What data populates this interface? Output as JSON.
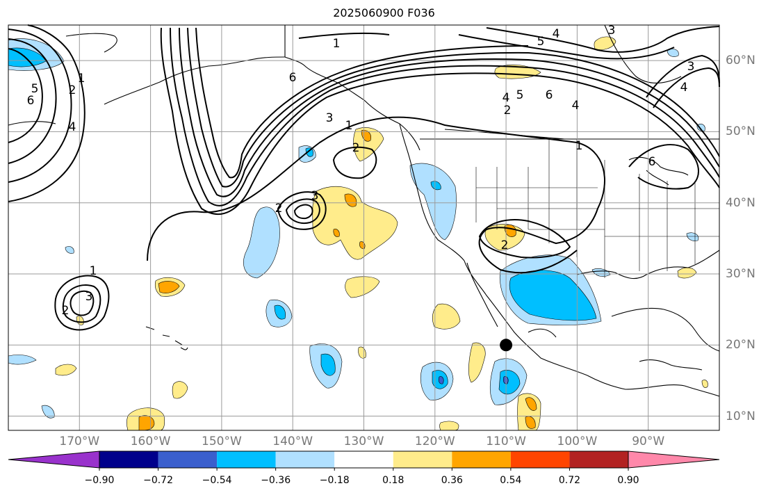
{
  "title": "2025060900 F036",
  "map": {
    "projection": "PlateCarree",
    "lon_range": [
      -180,
      -80
    ],
    "lat_range": [
      8,
      65
    ],
    "lon_labels": [
      "170°W",
      "160°W",
      "150°W",
      "140°W",
      "130°W",
      "120°W",
      "110°W",
      "100°W",
      "90°W"
    ],
    "lat_labels": [
      "60°N",
      "50°N",
      "40°N",
      "30°N",
      "20°N",
      "10°N"
    ],
    "gridlines": true,
    "contour_line_labels": [
      "1",
      "2",
      "3",
      "4",
      "5",
      "6"
    ],
    "marker": {
      "type": "dot",
      "lon": -110,
      "lat": 20,
      "color": "#000000"
    }
  },
  "colorbar": {
    "orientation": "horizontal",
    "extend": "both",
    "ticks": [
      "−0.90",
      "−0.72",
      "−0.54",
      "−0.36",
      "−0.18",
      "0.18",
      "0.36",
      "0.54",
      "0.72",
      "0.90"
    ],
    "colors": [
      "#9932cc",
      "#00008b",
      "#3a5fcd",
      "#00bfff",
      "#b0e0ff",
      "#ffffff",
      "#ffec8b",
      "#ffa500",
      "#ff4500",
      "#b22222",
      "#ff88aa"
    ]
  }
}
